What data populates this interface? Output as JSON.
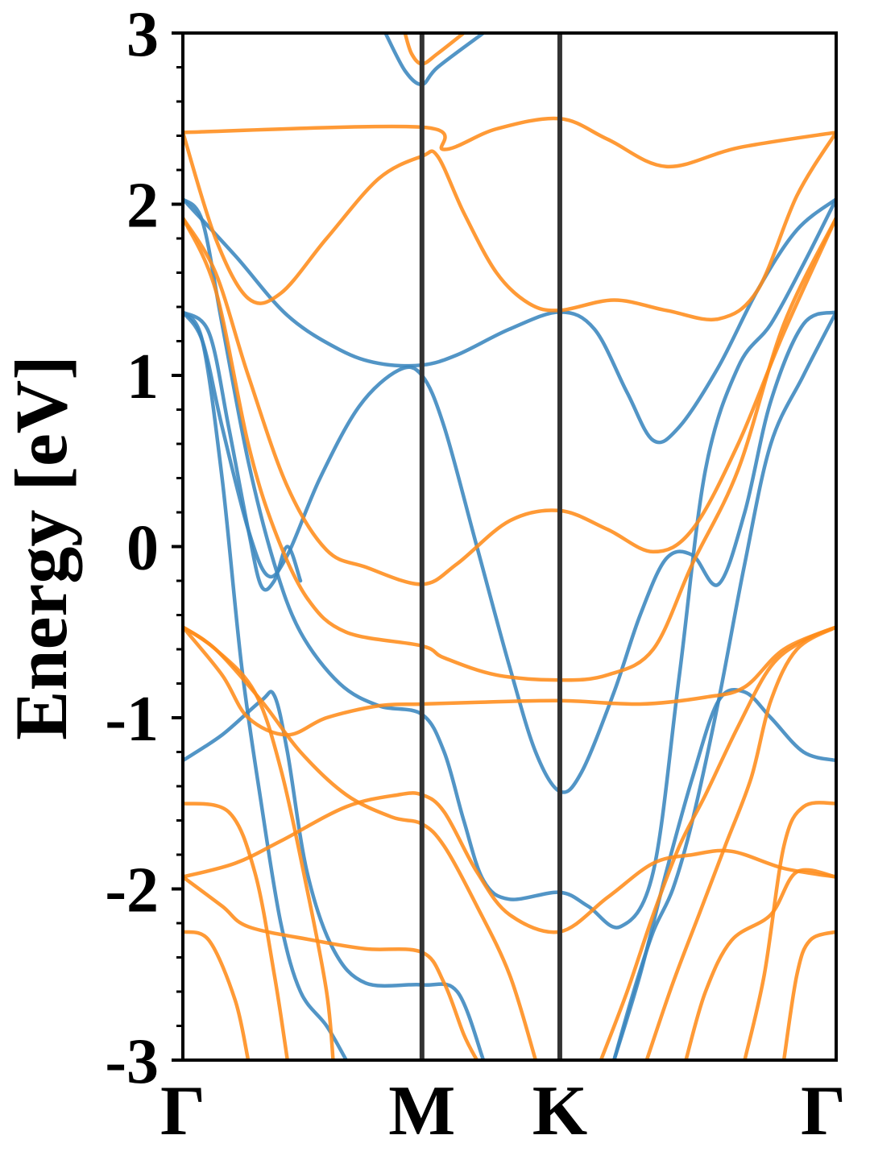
{
  "chart_data": {
    "type": "line",
    "title": "",
    "xlabel": "",
    "ylabel": "Energy [eV]",
    "ylim": [
      -3,
      3
    ],
    "yticks": [
      -3,
      -2,
      -1,
      0,
      1,
      2,
      3
    ],
    "ytick_labels": [
      "-3",
      "-2",
      "-1",
      "0",
      "1",
      "2",
      "3"
    ],
    "y_minor_step": 0.2,
    "grid": false,
    "legend": "none",
    "xlim": [
      0,
      1
    ],
    "high_symmetry_points": [
      {
        "label": "Γ",
        "x": 0.0
      },
      {
        "label": "M",
        "x": 0.366
      },
      {
        "label": "K",
        "x": 0.577
      },
      {
        "label": "Γ",
        "x": 1.0
      }
    ],
    "colors": {
      "blue": "#3a86be",
      "orange": "#ff8c1a",
      "symmetry_line": "#333333"
    },
    "series": [
      {
        "color": "blue",
        "points": [
          [
            0,
            2.03
          ],
          [
            0.08,
            1.7
          ],
          [
            0.16,
            1.35
          ],
          [
            0.24,
            1.15
          ],
          [
            0.3,
            1.07
          ],
          [
            0.366,
            1.06
          ],
          [
            0.42,
            1.12
          ],
          [
            0.5,
            1.27
          ],
          [
            0.577,
            1.37
          ],
          [
            0.63,
            1.27
          ],
          [
            0.68,
            0.9
          ],
          [
            0.72,
            0.62
          ],
          [
            0.76,
            0.7
          ],
          [
            0.82,
            1.05
          ],
          [
            0.88,
            1.5
          ],
          [
            0.94,
            1.85
          ],
          [
            1.0,
            2.03
          ]
        ]
      },
      {
        "color": "blue",
        "points": [
          [
            0,
            1.37
          ],
          [
            0.03,
            1.2
          ],
          [
            0.06,
            0.7
          ],
          [
            0.1,
            0.1
          ],
          [
            0.13,
            -0.17
          ],
          [
            0.16,
            -0.05
          ],
          [
            0.21,
            0.4
          ],
          [
            0.27,
            0.82
          ],
          [
            0.33,
            1.03
          ],
          [
            0.366,
            1.0
          ],
          [
            0.4,
            0.7
          ],
          [
            0.45,
            0.0
          ],
          [
            0.5,
            -0.7
          ],
          [
            0.54,
            -1.2
          ],
          [
            0.577,
            -1.43
          ],
          [
            0.61,
            -1.32
          ],
          [
            0.66,
            -0.85
          ],
          [
            0.7,
            -0.4
          ],
          [
            0.74,
            -0.07
          ],
          [
            0.78,
            -0.05
          ],
          [
            0.82,
            -0.22
          ],
          [
            0.86,
            0.2
          ],
          [
            0.9,
            0.85
          ],
          [
            0.95,
            1.3
          ],
          [
            1.0,
            1.37
          ]
        ]
      },
      {
        "color": "blue",
        "points": [
          [
            0,
            2.03
          ],
          [
            0.03,
            1.9
          ],
          [
            0.06,
            1.3
          ],
          [
            0.1,
            0.5
          ],
          [
            0.14,
            -0.1
          ],
          [
            0.18,
            -0.5
          ],
          [
            0.24,
            -0.8
          ],
          [
            0.3,
            -0.93
          ],
          [
            0.366,
            -0.98
          ],
          [
            0.4,
            -1.2
          ],
          [
            0.43,
            -1.6
          ],
          [
            0.46,
            -1.95
          ],
          [
            0.5,
            -2.06
          ],
          [
            0.577,
            -2.02
          ],
          [
            0.62,
            -2.1
          ],
          [
            0.67,
            -2.22
          ],
          [
            0.72,
            -1.9
          ],
          [
            0.76,
            -0.75
          ],
          [
            0.8,
            0.45
          ],
          [
            0.85,
            1.05
          ],
          [
            0.9,
            1.3
          ],
          [
            0.95,
            1.65
          ],
          [
            1.0,
            2.03
          ]
        ]
      },
      {
        "color": "blue",
        "points": [
          [
            0,
            1.37
          ],
          [
            0.04,
            1.25
          ],
          [
            0.07,
            0.7
          ],
          [
            0.1,
            0.1
          ],
          [
            0.12,
            -0.23
          ],
          [
            0.14,
            -0.2
          ],
          [
            0.16,
            0.0
          ],
          [
            0.18,
            -0.2
          ]
        ]
      },
      {
        "color": "blue",
        "points": [
          [
            0,
            -1.25
          ],
          [
            0.06,
            -1.1
          ],
          [
            0.12,
            -0.9
          ],
          [
            0.14,
            -0.87
          ],
          [
            0.16,
            -1.2
          ],
          [
            0.19,
            -1.9
          ],
          [
            0.23,
            -2.35
          ],
          [
            0.28,
            -2.55
          ],
          [
            0.366,
            -2.56
          ],
          [
            0.42,
            -2.6
          ],
          [
            0.46,
            -3.0
          ]
        ]
      },
      {
        "color": "blue",
        "points": [
          [
            0,
            1.37
          ],
          [
            0.03,
            1.2
          ],
          [
            0.06,
            0.4
          ],
          [
            0.09,
            -0.7
          ],
          [
            0.12,
            -1.5
          ],
          [
            0.15,
            -2.2
          ],
          [
            0.18,
            -2.6
          ],
          [
            0.22,
            -2.8
          ],
          [
            0.25,
            -3.0
          ]
        ]
      },
      {
        "color": "blue",
        "points": [
          [
            0.66,
            -3.0
          ],
          [
            0.7,
            -2.5
          ],
          [
            0.74,
            -1.9
          ],
          [
            0.78,
            -1.35
          ],
          [
            0.82,
            -0.9
          ],
          [
            0.86,
            -0.85
          ],
          [
            0.9,
            -1.0
          ],
          [
            0.95,
            -1.2
          ],
          [
            1.0,
            -1.25
          ]
        ]
      },
      {
        "color": "blue",
        "points": [
          [
            0.66,
            -3.0
          ],
          [
            0.69,
            -2.6
          ],
          [
            0.72,
            -2.25
          ],
          [
            0.75,
            -2.0
          ],
          [
            0.78,
            -1.6
          ],
          [
            0.82,
            -0.9
          ],
          [
            0.86,
            -0.1
          ],
          [
            0.9,
            0.6
          ],
          [
            0.95,
            1.0
          ],
          [
            1.0,
            1.37
          ]
        ]
      },
      {
        "color": "blue",
        "points": [
          [
            0.31,
            3.0
          ],
          [
            0.34,
            2.78
          ],
          [
            0.366,
            2.7
          ],
          [
            0.39,
            2.8
          ],
          [
            0.46,
            3.0
          ]
        ]
      },
      {
        "color": "orange",
        "points": [
          [
            0,
            2.42
          ],
          [
            0.366,
            2.45
          ],
          [
            0.4,
            2.32
          ],
          [
            0.48,
            2.44
          ],
          [
            0.577,
            2.5
          ],
          [
            0.65,
            2.38
          ],
          [
            0.74,
            2.22
          ],
          [
            0.85,
            2.33
          ],
          [
            1.0,
            2.42
          ]
        ]
      },
      {
        "color": "orange",
        "points": [
          [
            0,
            2.42
          ],
          [
            0.05,
            1.8
          ],
          [
            0.1,
            1.45
          ],
          [
            0.15,
            1.48
          ],
          [
            0.22,
            1.8
          ],
          [
            0.3,
            2.15
          ],
          [
            0.366,
            2.28
          ],
          [
            0.39,
            2.28
          ],
          [
            0.43,
            1.95
          ],
          [
            0.48,
            1.6
          ],
          [
            0.53,
            1.42
          ],
          [
            0.577,
            1.38
          ],
          [
            0.66,
            1.44
          ],
          [
            0.74,
            1.38
          ],
          [
            0.82,
            1.33
          ],
          [
            0.88,
            1.5
          ],
          [
            0.94,
            2.05
          ],
          [
            1.0,
            2.42
          ]
        ]
      },
      {
        "color": "orange",
        "points": [
          [
            0,
            1.92
          ],
          [
            0.05,
            1.6
          ],
          [
            0.1,
            1.0
          ],
          [
            0.16,
            0.35
          ],
          [
            0.22,
            -0.02
          ],
          [
            0.28,
            -0.12
          ],
          [
            0.366,
            -0.22
          ],
          [
            0.42,
            -0.1
          ],
          [
            0.5,
            0.15
          ],
          [
            0.577,
            0.21
          ],
          [
            0.65,
            0.1
          ],
          [
            0.72,
            -0.03
          ],
          [
            0.78,
            0.1
          ],
          [
            0.85,
            0.6
          ],
          [
            0.92,
            1.25
          ],
          [
            1.0,
            1.92
          ]
        ]
      },
      {
        "color": "orange",
        "points": [
          [
            0,
            1.92
          ],
          [
            0.05,
            1.5
          ],
          [
            0.1,
            0.6
          ],
          [
            0.14,
            0.1
          ],
          [
            0.19,
            -0.3
          ],
          [
            0.25,
            -0.5
          ],
          [
            0.366,
            -0.58
          ],
          [
            0.4,
            -0.65
          ],
          [
            0.48,
            -0.75
          ],
          [
            0.577,
            -0.78
          ],
          [
            0.65,
            -0.75
          ],
          [
            0.72,
            -0.6
          ],
          [
            0.78,
            -0.1
          ],
          [
            0.85,
            0.45
          ],
          [
            0.92,
            1.3
          ],
          [
            1.0,
            1.92
          ]
        ]
      },
      {
        "color": "orange",
        "points": [
          [
            0,
            -0.47
          ],
          [
            0.06,
            -0.75
          ],
          [
            0.1,
            -1.0
          ],
          [
            0.16,
            -1.1
          ],
          [
            0.22,
            -1.0
          ],
          [
            0.3,
            -0.93
          ],
          [
            0.366,
            -0.92
          ],
          [
            0.45,
            -0.91
          ],
          [
            0.577,
            -0.9
          ],
          [
            0.7,
            -0.92
          ],
          [
            0.8,
            -0.88
          ],
          [
            0.86,
            -0.82
          ],
          [
            0.92,
            -0.6
          ],
          [
            1.0,
            -0.47
          ]
        ]
      },
      {
        "color": "orange",
        "points": [
          [
            0,
            -0.47
          ],
          [
            0.05,
            -0.6
          ],
          [
            0.12,
            -0.9
          ],
          [
            0.18,
            -1.2
          ],
          [
            0.25,
            -1.45
          ],
          [
            0.32,
            -1.58
          ],
          [
            0.366,
            -1.62
          ],
          [
            0.4,
            -1.75
          ],
          [
            0.45,
            -2.1
          ],
          [
            0.5,
            -2.5
          ],
          [
            0.54,
            -3.0
          ]
        ]
      },
      {
        "color": "orange",
        "points": [
          [
            0,
            -0.47
          ],
          [
            0.05,
            -0.6
          ],
          [
            0.11,
            -0.85
          ],
          [
            0.15,
            -1.3
          ],
          [
            0.19,
            -2.0
          ],
          [
            0.22,
            -2.6
          ],
          [
            0.23,
            -3.0
          ]
        ]
      },
      {
        "color": "orange",
        "points": [
          [
            0,
            -1.5
          ],
          [
            0.07,
            -1.55
          ],
          [
            0.11,
            -1.9
          ],
          [
            0.14,
            -2.5
          ],
          [
            0.16,
            -3.0
          ]
        ]
      },
      {
        "color": "orange",
        "points": [
          [
            0,
            -1.93
          ],
          [
            0.08,
            -1.85
          ],
          [
            0.15,
            -1.72
          ],
          [
            0.25,
            -1.52
          ],
          [
            0.33,
            -1.45
          ],
          [
            0.366,
            -1.45
          ],
          [
            0.4,
            -1.55
          ],
          [
            0.45,
            -1.9
          ],
          [
            0.5,
            -2.15
          ],
          [
            0.577,
            -2.25
          ],
          [
            0.65,
            -2.05
          ],
          [
            0.72,
            -1.85
          ],
          [
            0.78,
            -1.8
          ],
          [
            0.84,
            -1.78
          ],
          [
            0.92,
            -1.88
          ],
          [
            1.0,
            -1.93
          ]
        ]
      },
      {
        "color": "orange",
        "points": [
          [
            0,
            -1.93
          ],
          [
            0.06,
            -2.1
          ],
          [
            0.1,
            -2.22
          ],
          [
            0.2,
            -2.3
          ],
          [
            0.28,
            -2.35
          ],
          [
            0.366,
            -2.37
          ],
          [
            0.4,
            -2.55
          ],
          [
            0.43,
            -2.85
          ],
          [
            0.45,
            -3.0
          ]
        ]
      },
      {
        "color": "orange",
        "points": [
          [
            0,
            -2.25
          ],
          [
            0.04,
            -2.3
          ],
          [
            0.08,
            -2.65
          ],
          [
            0.1,
            -3.0
          ]
        ]
      },
      {
        "color": "orange",
        "points": [
          [
            0.64,
            -3.0
          ],
          [
            0.68,
            -2.6
          ],
          [
            0.72,
            -2.15
          ],
          [
            0.76,
            -1.75
          ],
          [
            0.8,
            -1.45
          ],
          [
            0.85,
            -1.05
          ],
          [
            0.9,
            -0.7
          ],
          [
            0.95,
            -0.55
          ],
          [
            1.0,
            -0.47
          ]
        ]
      },
      {
        "color": "orange",
        "points": [
          [
            0.71,
            -3.0
          ],
          [
            0.75,
            -2.55
          ],
          [
            0.79,
            -2.15
          ],
          [
            0.83,
            -1.75
          ],
          [
            0.87,
            -1.35
          ],
          [
            0.9,
            -0.9
          ],
          [
            0.94,
            -0.6
          ],
          [
            1.0,
            -0.47
          ]
        ]
      },
      {
        "color": "orange",
        "points": [
          [
            0.77,
            -3.0
          ],
          [
            0.8,
            -2.6
          ],
          [
            0.84,
            -2.3
          ],
          [
            0.9,
            -2.15
          ],
          [
            0.94,
            -1.9
          ],
          [
            1.0,
            -1.93
          ]
        ]
      },
      {
        "color": "orange",
        "points": [
          [
            0.86,
            -3.0
          ],
          [
            0.89,
            -2.5
          ],
          [
            0.92,
            -1.75
          ],
          [
            0.95,
            -1.52
          ],
          [
            1.0,
            -1.5
          ]
        ]
      },
      {
        "color": "orange",
        "points": [
          [
            0.92,
            -3.0
          ],
          [
            0.94,
            -2.5
          ],
          [
            0.96,
            -2.3
          ],
          [
            1.0,
            -2.25
          ]
        ]
      },
      {
        "color": "orange",
        "points": [
          [
            0.34,
            3.0
          ],
          [
            0.35,
            2.88
          ],
          [
            0.366,
            2.82
          ],
          [
            0.39,
            2.88
          ],
          [
            0.43,
            3.0
          ]
        ]
      }
    ]
  }
}
